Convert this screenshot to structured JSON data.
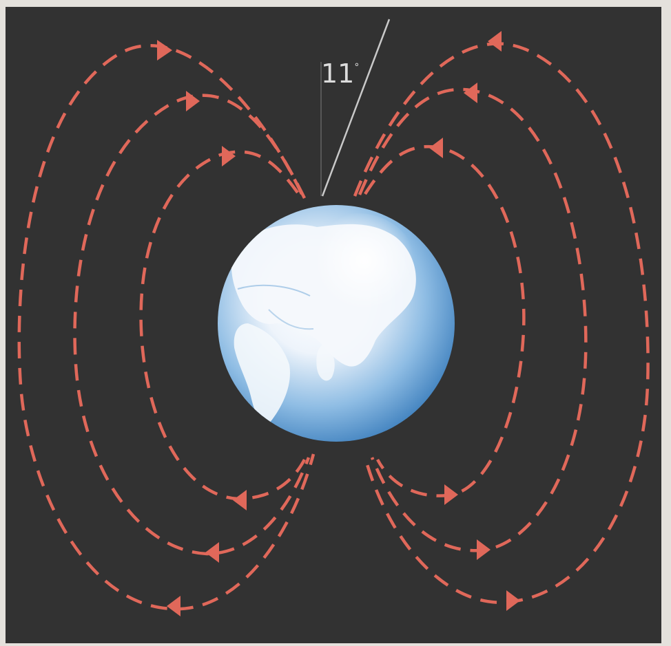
{
  "figure": {
    "angle_label": "11",
    "angle_unit": "°"
  },
  "colors": {
    "paper": "#e4e1dc",
    "background": "#323232",
    "field_line": "#e0685a",
    "axis_line": "#c9c9c9",
    "angle_text": "#dcdcdc",
    "ocean": "#5b9ad0",
    "land": "#f2f6fb"
  },
  "icons": {
    "field_direction": "triangle-arrow-icon",
    "planet": "earth-globe-icon"
  }
}
